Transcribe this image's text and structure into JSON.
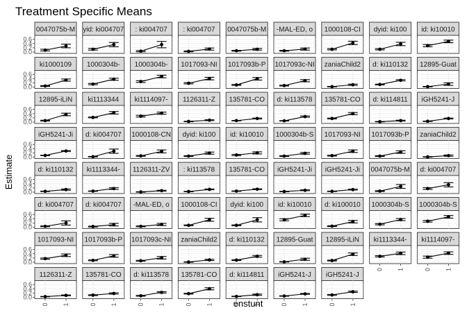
{
  "chart_data": {
    "type": "faceted-errorbar",
    "title": "Treatment Specific Means",
    "xlabel": "enstunt",
    "ylabel": "Estimate",
    "x_categories": [
      "0",
      "1"
    ],
    "y_ticks": [
      "0.0",
      "0.2",
      "0.4",
      "0.6"
    ],
    "ylim": [
      0,
      0.72
    ],
    "grid": true,
    "panels": [
      {
        "label": "0047075b-M",
        "est": [
          0.09,
          0.28
        ],
        "lo": [
          0.05,
          0.2
        ],
        "hi": [
          0.13,
          0.37
        ]
      },
      {
        "label": "yid: ki004707",
        "est": [
          0.13,
          0.35
        ],
        "lo": [
          0.09,
          0.25
        ],
        "hi": [
          0.17,
          0.45
        ]
      },
      {
        "label": ": ki004707",
        "est": [
          0.04,
          0.35
        ],
        "lo": [
          0.01,
          0.2
        ],
        "hi": [
          0.07,
          0.5
        ]
      },
      {
        "label": ": ki004707",
        "est": [
          0.03,
          0.14
        ],
        "lo": [
          0.01,
          0.09
        ],
        "hi": [
          0.05,
          0.19
        ]
      },
      {
        "label": "0047075b-M",
        "est": [
          0.06,
          0.13
        ],
        "lo": [
          0.04,
          0.09
        ],
        "hi": [
          0.08,
          0.17
        ]
      },
      {
        "label": "-MAL-ED, o",
        "est": [
          0.06,
          0.14
        ],
        "lo": [
          0.04,
          0.09
        ],
        "hi": [
          0.08,
          0.19
        ]
      },
      {
        "label": "1000108-CI",
        "est": [
          0.13,
          0.43
        ],
        "lo": [
          0.1,
          0.35
        ],
        "hi": [
          0.16,
          0.51
        ]
      },
      {
        "label": "dyid: ki100",
        "est": [
          0.13,
          0.38
        ],
        "lo": [
          0.1,
          0.3
        ],
        "hi": [
          0.16,
          0.46
        ]
      },
      {
        "label": "id: ki10010",
        "est": [
          0.3,
          0.5
        ],
        "lo": [
          0.25,
          0.44
        ],
        "hi": [
          0.35,
          0.56
        ]
      },
      {
        "label": "ki1000109",
        "est": [
          0.05,
          0.33
        ],
        "lo": [
          0.03,
          0.28
        ],
        "hi": [
          0.07,
          0.38
        ]
      },
      {
        "label": "1000304b-",
        "est": [
          0.14,
          0.37
        ],
        "lo": [
          0.11,
          0.32
        ],
        "hi": [
          0.17,
          0.42
        ]
      },
      {
        "label": "1000304b-",
        "est": [
          0.26,
          0.5
        ],
        "lo": [
          0.22,
          0.44
        ],
        "hi": [
          0.3,
          0.56
        ]
      },
      {
        "label": "1017093-NI",
        "est": [
          0.18,
          0.4
        ],
        "lo": [
          0.15,
          0.34
        ],
        "hi": [
          0.21,
          0.46
        ]
      },
      {
        "label": "1017093b-P",
        "est": [
          0.1,
          0.39
        ],
        "lo": [
          0.08,
          0.33
        ],
        "hi": [
          0.12,
          0.45
        ]
      },
      {
        "label": "1017093c-NI",
        "est": [
          0.07,
          0.3
        ],
        "lo": [
          0.05,
          0.25
        ],
        "hi": [
          0.09,
          0.35
        ]
      },
      {
        "label": "zaniaChild2",
        "est": [
          0.02,
          0.11
        ],
        "lo": [
          0.01,
          0.08
        ],
        "hi": [
          0.03,
          0.14
        ]
      },
      {
        "label": "d: ki110132",
        "est": [
          0.12,
          0.32
        ],
        "lo": [
          0.1,
          0.29
        ],
        "hi": [
          0.14,
          0.35
        ]
      },
      {
        "label": "12895-Guat",
        "est": [
          0.02,
          0.14
        ],
        "lo": [
          0.01,
          0.08
        ],
        "hi": [
          0.03,
          0.2
        ]
      },
      {
        "label": "12895-iLiN",
        "est": [
          0.07,
          0.36
        ],
        "lo": [
          0.05,
          0.3
        ],
        "hi": [
          0.09,
          0.42
        ]
      },
      {
        "label": "ki1113344",
        "est": [
          0.22,
          0.44
        ],
        "lo": [
          0.2,
          0.38
        ],
        "hi": [
          0.24,
          0.5
        ]
      },
      {
        "label": "ki1114097-",
        "est": [
          0.28,
          0.42
        ],
        "lo": [
          0.24,
          0.37
        ],
        "hi": [
          0.32,
          0.47
        ]
      },
      {
        "label": "1126311-Z",
        "est": [
          0.03,
          0.09
        ],
        "lo": [
          0.02,
          0.07
        ],
        "hi": [
          0.04,
          0.11
        ]
      },
      {
        "label": "135781-CO",
        "est": [
          0.07,
          0.17
        ],
        "lo": [
          0.06,
          0.15
        ],
        "hi": [
          0.08,
          0.19
        ]
      },
      {
        "label": "d: ki113578",
        "est": [
          0.06,
          0.26
        ],
        "lo": [
          0.05,
          0.23
        ],
        "hi": [
          0.07,
          0.29
        ]
      },
      {
        "label": "135781-CO",
        "est": [
          0.17,
          0.4
        ],
        "lo": [
          0.15,
          0.35
        ],
        "hi": [
          0.19,
          0.45
        ]
      },
      {
        "label": "d: ki114811",
        "est": [
          0.02,
          0.07
        ],
        "lo": [
          0.01,
          0.05
        ],
        "hi": [
          0.03,
          0.09
        ]
      },
      {
        "label": "iGH5241-J",
        "est": [
          0.04,
          0.17
        ],
        "lo": [
          0.03,
          0.15
        ],
        "hi": [
          0.05,
          0.19
        ]
      },
      {
        "label": "iGH5241-Ji",
        "est": [
          0.08,
          0.29
        ],
        "lo": [
          0.07,
          0.27
        ],
        "hi": [
          0.09,
          0.31
        ]
      },
      {
        "label": "d: ki004707",
        "est": [
          0.02,
          0.28
        ],
        "lo": [
          0.01,
          0.18
        ],
        "hi": [
          0.03,
          0.38
        ]
      },
      {
        "label": "1000108-CN",
        "est": [
          0.06,
          0.27
        ],
        "lo": [
          0.04,
          0.2
        ],
        "hi": [
          0.08,
          0.34
        ]
      },
      {
        "label": "dyid: ki100",
        "est": [
          0.05,
          0.19
        ],
        "lo": [
          0.03,
          0.14
        ],
        "hi": [
          0.07,
          0.24
        ]
      },
      {
        "label": "id: ki10010",
        "est": [
          0.1,
          0.2
        ],
        "lo": [
          0.07,
          0.15
        ],
        "hi": [
          0.13,
          0.25
        ]
      },
      {
        "label": "1000304b-S",
        "est": [
          0.05,
          0.18
        ],
        "lo": [
          0.03,
          0.14
        ],
        "hi": [
          0.07,
          0.22
        ]
      },
      {
        "label": "1017093-NI",
        "est": [
          0.07,
          0.28
        ],
        "lo": [
          0.05,
          0.22
        ],
        "hi": [
          0.09,
          0.34
        ]
      },
      {
        "label": "1017093b-P",
        "est": [
          0.05,
          0.24
        ],
        "lo": [
          0.03,
          0.18
        ],
        "hi": [
          0.07,
          0.3
        ]
      },
      {
        "label": "zaniaChild2",
        "est": [
          0.01,
          0.07
        ],
        "lo": [
          0.0,
          0.04
        ],
        "hi": [
          0.02,
          0.1
        ]
      },
      {
        "label": "d: ki110132",
        "est": [
          0.04,
          0.12
        ],
        "lo": [
          0.03,
          0.09
        ],
        "hi": [
          0.05,
          0.15
        ]
      },
      {
        "label": "ki1113344-",
        "est": [
          0.05,
          0.17
        ],
        "lo": [
          0.04,
          0.13
        ],
        "hi": [
          0.06,
          0.21
        ]
      },
      {
        "label": "1126311-ZV",
        "est": [
          0.01,
          0.07
        ],
        "lo": [
          0.0,
          0.05
        ],
        "hi": [
          0.02,
          0.09
        ]
      },
      {
        "label": ": ki113578",
        "est": [
          0.03,
          0.13
        ],
        "lo": [
          0.02,
          0.11
        ],
        "hi": [
          0.04,
          0.15
        ]
      },
      {
        "label": "135781-CO",
        "est": [
          0.05,
          0.14
        ],
        "lo": [
          0.04,
          0.12
        ],
        "hi": [
          0.06,
          0.16
        ]
      },
      {
        "label": "iGH5241-Ji",
        "est": [
          0.03,
          0.09
        ],
        "lo": [
          0.02,
          0.07
        ],
        "hi": [
          0.04,
          0.11
        ]
      },
      {
        "label": "iGH5241-Ji",
        "est": [
          0.04,
          0.12
        ],
        "lo": [
          0.03,
          0.1
        ],
        "hi": [
          0.05,
          0.14
        ]
      },
      {
        "label": "0047075b-M",
        "est": [
          0.05,
          0.27
        ],
        "lo": [
          0.03,
          0.18
        ],
        "hi": [
          0.07,
          0.36
        ]
      },
      {
        "label": "d: ki004707",
        "est": [
          0.17,
          0.35
        ],
        "lo": [
          0.13,
          0.25
        ],
        "hi": [
          0.21,
          0.45
        ]
      },
      {
        "label": "d: ki004707",
        "est": [
          0.04,
          0.2
        ],
        "lo": [
          0.02,
          0.1
        ],
        "hi": [
          0.06,
          0.3
        ]
      },
      {
        "label": "d: ki004707",
        "est": [
          0.03,
          0.12
        ],
        "lo": [
          0.01,
          0.06
        ],
        "hi": [
          0.05,
          0.18
        ]
      },
      {
        "label": "-MAL-ED, o",
        "est": [
          0.04,
          0.13
        ],
        "lo": [
          0.02,
          0.08
        ],
        "hi": [
          0.06,
          0.18
        ]
      },
      {
        "label": "1000108-CI",
        "est": [
          0.09,
          0.35
        ],
        "lo": [
          0.07,
          0.28
        ],
        "hi": [
          0.11,
          0.42
        ]
      },
      {
        "label": "dyid: ki100",
        "est": [
          0.09,
          0.35
        ],
        "lo": [
          0.07,
          0.25
        ],
        "hi": [
          0.11,
          0.45
        ]
      },
      {
        "label": "id: ki10010",
        "est": [
          0.35,
          0.56
        ],
        "lo": [
          0.3,
          0.5
        ],
        "hi": [
          0.4,
          0.62
        ]
      },
      {
        "label": "d: ki100010",
        "est": [
          0.05,
          0.26
        ],
        "lo": [
          0.03,
          0.2
        ],
        "hi": [
          0.07,
          0.32
        ]
      },
      {
        "label": "1000304b-S",
        "est": [
          0.14,
          0.36
        ],
        "lo": [
          0.11,
          0.31
        ],
        "hi": [
          0.17,
          0.41
        ]
      },
      {
        "label": "1000304b-S",
        "est": [
          0.28,
          0.49
        ],
        "lo": [
          0.24,
          0.43
        ],
        "hi": [
          0.32,
          0.55
        ]
      },
      {
        "label": "1017093-NI",
        "est": [
          0.17,
          0.33
        ],
        "lo": [
          0.14,
          0.27
        ],
        "hi": [
          0.2,
          0.39
        ]
      },
      {
        "label": "1017093b-P",
        "est": [
          0.09,
          0.3
        ],
        "lo": [
          0.07,
          0.24
        ],
        "hi": [
          0.11,
          0.36
        ]
      },
      {
        "label": "1017093c-NI",
        "est": [
          0.07,
          0.21
        ],
        "lo": [
          0.05,
          0.15
        ],
        "hi": [
          0.09,
          0.27
        ]
      },
      {
        "label": "zaniaChild2",
        "est": [
          0.01,
          0.11
        ],
        "lo": [
          0.0,
          0.08
        ],
        "hi": [
          0.02,
          0.14
        ]
      },
      {
        "label": "d: ki110132",
        "est": [
          0.1,
          0.28
        ],
        "lo": [
          0.08,
          0.24
        ],
        "hi": [
          0.12,
          0.32
        ]
      },
      {
        "label": "12895-Guat",
        "est": [
          0.02,
          0.14
        ],
        "lo": [
          0.01,
          0.09
        ],
        "hi": [
          0.03,
          0.19
        ]
      },
      {
        "label": "12895-iLiN",
        "est": [
          0.08,
          0.38
        ],
        "lo": [
          0.06,
          0.32
        ],
        "hi": [
          0.1,
          0.44
        ]
      },
      {
        "label": "ki1113344-",
        "est": [
          0.28,
          0.42
        ],
        "lo": [
          0.25,
          0.36
        ],
        "hi": [
          0.31,
          0.48
        ]
      },
      {
        "label": "ki1114097-",
        "est": [
          0.24,
          0.43
        ],
        "lo": [
          0.19,
          0.37
        ],
        "hi": [
          0.29,
          0.49
        ]
      },
      {
        "label": "1126311-Z",
        "est": [
          0.03,
          0.09
        ],
        "lo": [
          0.02,
          0.07
        ],
        "hi": [
          0.04,
          0.11
        ]
      },
      {
        "label": "135781-CO",
        "est": [
          0.1,
          0.18
        ],
        "lo": [
          0.08,
          0.15
        ],
        "hi": [
          0.12,
          0.21
        ]
      },
      {
        "label": "d: ki113578",
        "est": [
          0.07,
          0.23
        ],
        "lo": [
          0.05,
          0.2
        ],
        "hi": [
          0.09,
          0.26
        ]
      },
      {
        "label": "135781-CO",
        "est": [
          0.17,
          0.4
        ],
        "lo": [
          0.15,
          0.35
        ],
        "hi": [
          0.19,
          0.45
        ]
      },
      {
        "label": "d: ki114811",
        "est": [
          0.04,
          0.12
        ],
        "lo": [
          0.03,
          0.09
        ],
        "hi": [
          0.05,
          0.15
        ]
      },
      {
        "label": "iGH5241-J",
        "est": [
          0.06,
          0.16
        ],
        "lo": [
          0.05,
          0.14
        ],
        "hi": [
          0.07,
          0.18
        ]
      },
      {
        "label": "iGH5241-J",
        "est": [
          0.11,
          0.26
        ],
        "lo": [
          0.09,
          0.23
        ],
        "hi": [
          0.13,
          0.29
        ]
      }
    ]
  }
}
